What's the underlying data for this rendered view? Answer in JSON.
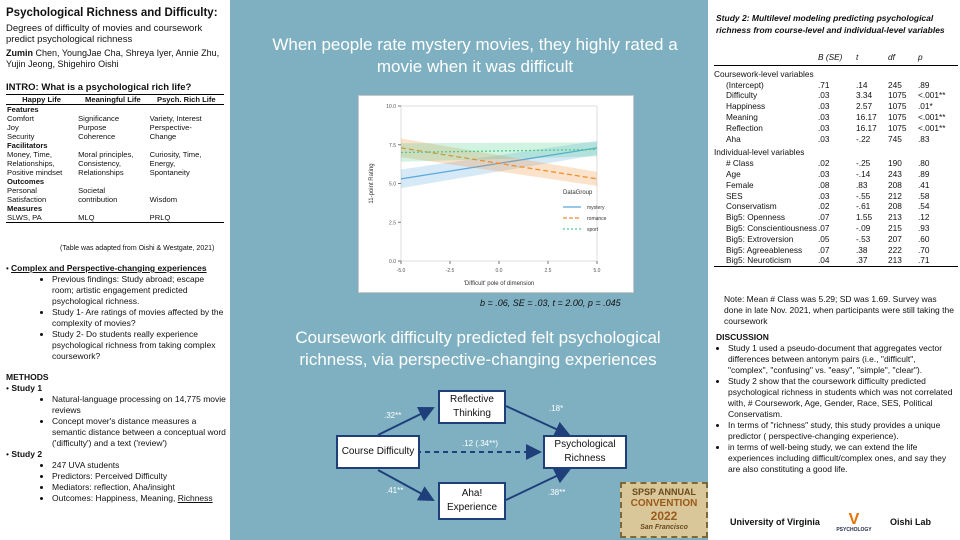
{
  "poster": {
    "title": "Psychological Richness and Difficulty:",
    "subtitle": "Degrees of difficulty of movies and coursework predict psychological richness",
    "authors_bold": "Zumin",
    "authors": " Chen, YoungJae Cha, Shreya Iyer,  Annie Zhu, Yujin Jeong, Shigehiro Oishi"
  },
  "intro": {
    "heading": "INTRO: What is a psychological rich life?",
    "columns": [
      "Happy Life",
      "Meaningful Life",
      "Psych. Rich  Life"
    ],
    "rows": [
      {
        "type": "section",
        "label": "Features"
      },
      {
        "type": "row",
        "cells": [
          "Comfort",
          "Significance",
          "Variety, Interest"
        ]
      },
      {
        "type": "row",
        "cells": [
          "Joy",
          "Purpose",
          "Perspective-"
        ]
      },
      {
        "type": "row",
        "cells": [
          "Security",
          "Coherence",
          "Change"
        ]
      },
      {
        "type": "section",
        "label": "Facilitators"
      },
      {
        "type": "row",
        "cells": [
          "Money, Time,",
          "Moral principles,",
          "Curiosity, Time,"
        ]
      },
      {
        "type": "row",
        "cells": [
          "Relationships,",
          "Consistency,",
          "Energy,"
        ]
      },
      {
        "type": "row",
        "cells": [
          "Positive mindset",
          "Relationships",
          "Spontaneity"
        ]
      },
      {
        "type": "section",
        "label": "Outcomes"
      },
      {
        "type": "row",
        "cells": [
          "Personal",
          "Societal",
          ""
        ]
      },
      {
        "type": "row",
        "cells": [
          "Satisfaction",
          "contribution",
          "Wisdom"
        ]
      },
      {
        "type": "section",
        "label": "Measures"
      },
      {
        "type": "row",
        "cells": [
          "SLWS, PA",
          "MLQ",
          "PRLQ"
        ]
      }
    ],
    "table_note": "(Table was adapted from Oishi & Westgate, 2021)"
  },
  "complex": {
    "heading": "Complex and Perspective-changing experiences",
    "items": [
      "Previous findings: Study abroad; escape room; artistic engagement predicted psychological richness.",
      "Study 1- Are ratings of movies affected by the complexity of movies?",
      "Study 2- Do students really experience psychological richness from taking complex coursework?"
    ]
  },
  "methods": {
    "heading": "METHODS",
    "study1": "Study 1",
    "study1_items": [
      "Natural-language processing on 14,775 movie reviews",
      "Concept mover's distance measures a semantic distance between a conceptual word ('difficulty') and a text ('review')"
    ],
    "study2": "Study 2",
    "study2_items": [
      "247 UVA students",
      "Predictors: Perceived Difficulty",
      "Mediators: reflection, Aha/insight"
    ],
    "study2_last_prefix": "Outcomes: Happiness, Meaning, ",
    "study2_last_underlined": "Richness"
  },
  "middle": {
    "headline1": "When people rate mystery movies, they highly rated a movie when it was difficult",
    "stat": "b = .06, SE = .03, t = 2.00, p = .045",
    "headline2": "Coursework difficulty predicted felt psychological richness, via perspective-changing experiences",
    "nodes": {
      "course": "Course Difficulty",
      "reflective": "Reflective Thinking",
      "aha": "Aha! Experience",
      "rich": "Psychological Richness"
    },
    "paths": {
      "cr": ".32**",
      "rr": ".18*",
      "direct": ".12 (.34**)",
      "ca": ".41**",
      "ar": ".38**"
    },
    "badge": {
      "top": "SPSP ANNUAL",
      "main": "CONVENTION",
      "year": "2022",
      "city": "San Francisco"
    }
  },
  "chart_data": {
    "type": "line",
    "xlabel": "'Difficult' pole of dimension",
    "ylabel": "11-point Rating",
    "xlim": [
      -5,
      5
    ],
    "ylim": [
      0,
      10
    ],
    "xticks": [
      "-5.0",
      "-2.5",
      "0.0",
      "2.5",
      "5.0"
    ],
    "yticks": [
      "0.0",
      "2.5",
      "5.0",
      "7.5",
      "10.0"
    ],
    "legend_title": "DataGroup",
    "legend_position": "right",
    "series": [
      {
        "name": "mystery",
        "x": [
          -5,
          5
        ],
        "y": [
          5.3,
          7.3
        ],
        "color": "#5aa8dc",
        "dash": "solid"
      },
      {
        "name": "romance",
        "x": [
          -5,
          5
        ],
        "y": [
          7.3,
          5.3
        ],
        "color": "#f08c2e",
        "dash": "dashed"
      },
      {
        "name": "sport",
        "x": [
          -5,
          5
        ],
        "y": [
          7.0,
          7.2
        ],
        "color": "#4ccb8c",
        "dash": "dotted"
      }
    ]
  },
  "study2_table": {
    "title": "Study 2: Multilevel modeling predicting psychological richness from course-level and individual-level variables",
    "headers": [
      "",
      "B (SE)",
      "t",
      "df",
      "p"
    ],
    "sec1": "Coursework-level variables",
    "rows1": [
      [
        "(Intercept)",
        ".71",
        ".14",
        "245",
        ".89"
      ],
      [
        "Difficulty",
        ".03",
        "3.34",
        "1075",
        "<.001**"
      ],
      [
        "Happiness",
        ".03",
        "2.57",
        "1075",
        ".01*"
      ],
      [
        "Meaning",
        ".03",
        "16.17",
        "1075",
        "<.001**"
      ],
      [
        "Reflection",
        ".03",
        "16.17",
        "1075",
        "<.001**"
      ],
      [
        "Aha",
        ".03",
        "-.22",
        "745",
        ".83"
      ]
    ],
    "sec2": "Individual-level variables",
    "rows2": [
      [
        "# Class",
        ".02",
        "-.25",
        "190",
        ".80"
      ],
      [
        "Age",
        ".03",
        "-.14",
        "243",
        ".89"
      ],
      [
        "Female",
        ".08",
        ".83",
        "208",
        ".41"
      ],
      [
        "SES",
        ".03",
        "-.55",
        "212",
        ".58"
      ],
      [
        "Conservatism",
        ".02",
        "-.61",
        "208",
        ".54"
      ],
      [
        "Big5: Openness",
        ".07",
        "1.55",
        "213",
        ".12"
      ],
      [
        "Big5: Conscientiousness",
        ".07",
        "-.09",
        "215",
        ".93"
      ],
      [
        "Big5: Extroversion",
        ".05",
        "-.53",
        "207",
        ".60"
      ],
      [
        "Big5: Agreeableness",
        ".07",
        ".38",
        "222",
        ".70"
      ],
      [
        "Big5: Neuroticism",
        ".04",
        ".37",
        "213",
        ".71"
      ]
    ],
    "note": "Note: Mean # Class was 5.29; SD was 1.69. Survey was done in late Nov. 2021, when participants were still taking the coursework"
  },
  "discussion": {
    "heading": "DISCUSSION",
    "items": [
      "Study 1 used a pseudo-document that aggregates vector differences between antonym pairs (i.e., \"difficult\", \"complex\", \"confusing\" vs. \"easy\", \"simple\", \"clear\").",
      "Study 2 show that the coursework difficulty predicted psychological richness in students which was not correlated with, # Coursework, Age, Gender, Race, SES, Political Conservatism.",
      "In terms of \"richness\" study, this study provides a unique predictor ( perspective-changing experience).",
      "in terms of well-being study, we can extend the life experiences including difficult/complex ones, and say they are also constituting a good life."
    ]
  },
  "footer": {
    "uva": "University of Virginia",
    "psych": "PSYCHOLOGY",
    "lab": "Oishi Lab"
  }
}
